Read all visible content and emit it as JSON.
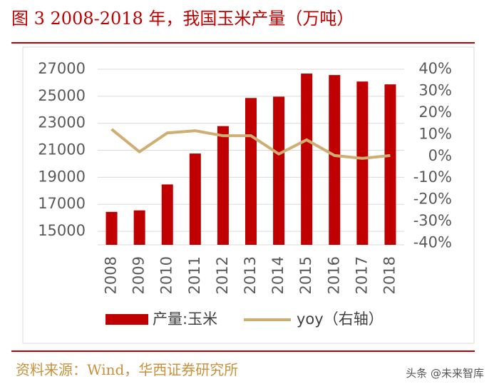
{
  "header": {
    "title": "图 3  2008-2018 年，我国玉米产量（万吨）"
  },
  "chart_data": {
    "type": "bar-line",
    "categories": [
      "2008",
      "2009",
      "2010",
      "2011",
      "2012",
      "2013",
      "2014",
      "2015",
      "2016",
      "2017",
      "2018"
    ],
    "series": [
      {
        "name": "产量:玉米",
        "color": "#c00000",
        "type": "bar",
        "values": [
          16440,
          16550,
          18470,
          20760,
          22790,
          24870,
          24970,
          26680,
          26570,
          26090,
          25880
        ]
      },
      {
        "name": "yoy（右轴）",
        "color": "#cfae74",
        "type": "line",
        "axis": "y2",
        "values": [
          12.4,
          2,
          10.7,
          11.7,
          9.4,
          9.4,
          1,
          7.5,
          0.3,
          -1,
          0.3
        ]
      }
    ],
    "ylim": [
      14000,
      27000
    ],
    "yticks": [
      15000,
      17000,
      19000,
      21000,
      23000,
      25000,
      27000
    ],
    "y2lim": [
      -40.8,
      40
    ],
    "y2ticks": [
      {
        "value": 40,
        "label": "40%"
      },
      {
        "value": 30,
        "label": "30%"
      },
      {
        "value": 20,
        "label": "20%"
      },
      {
        "value": 10,
        "label": "10%"
      },
      {
        "value": 0,
        "label": "0%"
      },
      {
        "value": -10,
        "label": "-10%"
      },
      {
        "value": -20,
        "label": "-20%"
      },
      {
        "value": -30,
        "label": "-30%"
      },
      {
        "value": -40,
        "label": "-40%"
      }
    ],
    "grid": true
  },
  "footer": {
    "source": "资料来源：Wind，华西证券研究所",
    "watermark": "头条 @未来智库"
  }
}
